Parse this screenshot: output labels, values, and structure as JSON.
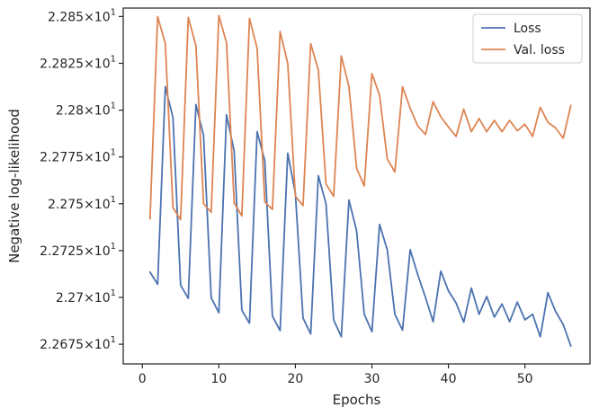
{
  "chart_data": {
    "type": "line",
    "title": "",
    "xlabel": "Epochs",
    "ylabel": "Negative log-likelihood",
    "xlim": [
      -2.5,
      58.5
    ],
    "ylim": [
      22.6645,
      22.8545
    ],
    "x_ticks": [
      {
        "value": 0,
        "label": "0"
      },
      {
        "value": 10,
        "label": "10"
      },
      {
        "value": 20,
        "label": "20"
      },
      {
        "value": 30,
        "label": "30"
      },
      {
        "value": 40,
        "label": "40"
      },
      {
        "value": 50,
        "label": "50"
      }
    ],
    "y_ticks": [
      {
        "value": 22.675,
        "base": "2.2675",
        "exp": "1"
      },
      {
        "value": 22.7,
        "base": "2.27",
        "exp": "1"
      },
      {
        "value": 22.725,
        "base": "2.2725",
        "exp": "1"
      },
      {
        "value": 22.75,
        "base": "2.275",
        "exp": "1"
      },
      {
        "value": 22.775,
        "base": "2.2775",
        "exp": "1"
      },
      {
        "value": 22.8,
        "base": "2.28",
        "exp": "1"
      },
      {
        "value": 22.825,
        "base": "2.2825",
        "exp": "1"
      },
      {
        "value": 22.85,
        "base": "2.285",
        "exp": "1"
      }
    ],
    "grid": false,
    "legend_position": "top-right",
    "x": [
      1,
      2,
      3,
      4,
      5,
      6,
      7,
      8,
      9,
      10,
      11,
      12,
      13,
      14,
      15,
      16,
      17,
      18,
      19,
      20,
      21,
      22,
      23,
      24,
      25,
      26,
      27,
      28,
      29,
      30,
      31,
      32,
      33,
      34,
      35,
      36,
      37,
      38,
      39,
      40,
      41,
      42,
      43,
      44,
      45,
      46,
      47,
      48,
      49,
      50,
      51,
      52,
      53,
      54,
      55,
      56
    ],
    "series": [
      {
        "name": "Loss",
        "color": "#4c72b0",
        "values": [
          22.7135,
          22.707,
          22.8125,
          22.796,
          22.7065,
          22.6995,
          22.803,
          22.7865,
          22.6998,
          22.6918,
          22.7975,
          22.778,
          22.6932,
          22.6862,
          22.7885,
          22.773,
          22.69,
          22.6823,
          22.777,
          22.7555,
          22.689,
          22.6805,
          22.765,
          22.75,
          22.688,
          22.679,
          22.752,
          22.7355,
          22.691,
          22.6817,
          22.739,
          22.7255,
          22.691,
          22.6825,
          22.7255,
          22.712,
          22.7,
          22.687,
          22.714,
          22.7035,
          22.697,
          22.6868,
          22.705,
          22.691,
          22.7005,
          22.6895,
          22.6965,
          22.687,
          22.6975,
          22.688,
          22.691,
          22.679,
          22.7025,
          22.6925,
          22.6855,
          22.674
        ]
      },
      {
        "name": "Val. loss",
        "color": "#dd8452",
        "values": [
          22.742,
          22.85,
          22.8355,
          22.748,
          22.7415,
          22.8495,
          22.8345,
          22.75,
          22.7455,
          22.8505,
          22.836,
          22.7505,
          22.7435,
          22.849,
          22.833,
          22.751,
          22.747,
          22.842,
          22.825,
          22.754,
          22.749,
          22.8355,
          22.8215,
          22.7605,
          22.754,
          22.829,
          22.8125,
          22.769,
          22.7595,
          22.8195,
          22.808,
          22.774,
          22.767,
          22.8125,
          22.801,
          22.7915,
          22.787,
          22.8045,
          22.7965,
          22.791,
          22.786,
          22.8005,
          22.7885,
          22.7955,
          22.7885,
          22.7945,
          22.7885,
          22.7945,
          22.789,
          22.7925,
          22.786,
          22.8015,
          22.7935,
          22.7905,
          22.785,
          22.8025
        ]
      }
    ]
  }
}
